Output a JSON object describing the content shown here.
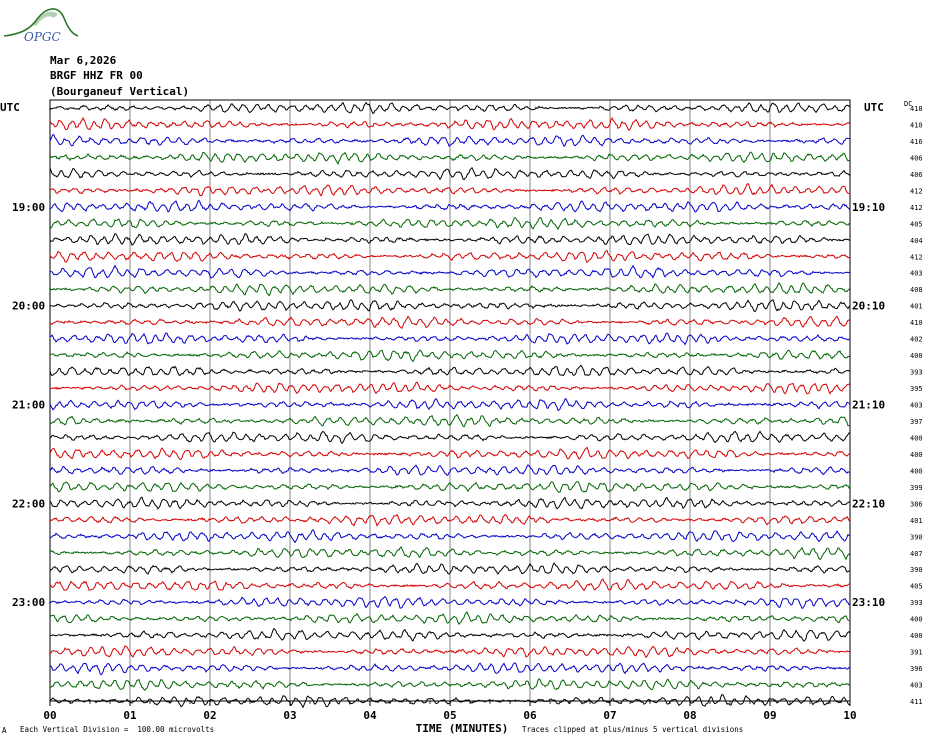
{
  "logo": {
    "text": "OPGC",
    "color": "#2a7a2a",
    "text_color": "#3a5aa8"
  },
  "header": {
    "date": "Mar 6,2026",
    "station": "BRGF HHZ FR 00",
    "location": "(Bourganeuf Vertical)"
  },
  "footer": {
    "division_note": "Each Vertical Division =  100.00 microvolts",
    "clip_note": "Traces clipped at plus/minus 5 vertical divisions",
    "corner_mark": "A"
  },
  "chart_data": {
    "type": "line",
    "title": "",
    "xlabel": "TIME (MINUTES)",
    "ylabel": "",
    "left_axis_title": "UTC",
    "right_axis_title": "UTC",
    "dc_label": "DC",
    "x": [
      "00",
      "01",
      "02",
      "03",
      "04",
      "05",
      "06",
      "07",
      "08",
      "09",
      "10"
    ],
    "xlim": [
      0,
      10
    ],
    "grid": "vertical lines every minute",
    "trace_colors": [
      "#000000",
      "#d40000",
      "#0000c8",
      "#006400"
    ],
    "left_hour_labels": [
      {
        "trace": 6,
        "text": "19:00"
      },
      {
        "trace": 12,
        "text": "20:00"
      },
      {
        "trace": 18,
        "text": "21:00"
      },
      {
        "trace": 24,
        "text": "22:00"
      },
      {
        "trace": 30,
        "text": "23:00"
      }
    ],
    "right_hour_labels": [
      {
        "trace": 6,
        "text": "19:10"
      },
      {
        "trace": 12,
        "text": "20:10"
      },
      {
        "trace": 18,
        "text": "21:10"
      },
      {
        "trace": 24,
        "text": "22:10"
      },
      {
        "trace": 30,
        "text": "23:10"
      }
    ],
    "dc_offsets": [
      418,
      410,
      416,
      406,
      406,
      412,
      412,
      405,
      404,
      412,
      403,
      408,
      401,
      410,
      402,
      400,
      393,
      395,
      403,
      397,
      400,
      400,
      400,
      399,
      386,
      401,
      390,
      407,
      390,
      405,
      393,
      400,
      400,
      391,
      396,
      403,
      411
    ]
  }
}
